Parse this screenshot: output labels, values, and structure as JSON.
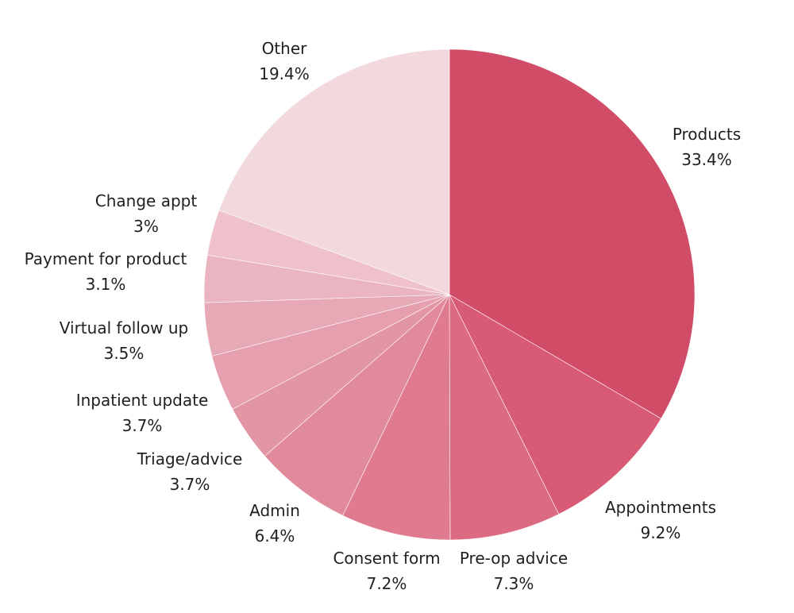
{
  "chart_data": {
    "type": "pie",
    "title": "",
    "start": "12 o'clock, clockwise",
    "slices": [
      {
        "label": "Products",
        "percent_text": "33.4%",
        "value": 33.4,
        "color": "#d04c67"
      },
      {
        "label": "Appointments",
        "percent_text": "9.2%",
        "value": 9.2,
        "color": "#d85a74"
      },
      {
        "label": "Pre-op advice",
        "percent_text": "7.3%",
        "value": 7.3,
        "color": "#dc6b81"
      },
      {
        "label": "Consent form",
        "percent_text": "7.2%",
        "value": 7.2,
        "color": "#e07b8f"
      },
      {
        "label": "Admin",
        "percent_text": "6.4%",
        "value": 6.4,
        "color": "#e08a9c"
      },
      {
        "label": "Triage/advice",
        "percent_text": "3.7%",
        "value": 3.7,
        "color": "#e295a5"
      },
      {
        "label": "Inpatient update",
        "percent_text": "3.7%",
        "value": 3.7,
        "color": "#e59fae"
      },
      {
        "label": "Virtual follow up",
        "percent_text": "3.5%",
        "value": 3.5,
        "color": "#e7a9b6"
      },
      {
        "label": "Payment for product",
        "percent_text": "3.1%",
        "value": 3.1,
        "color": "#eab4c0"
      },
      {
        "label": "Change appt",
        "percent_text": "3%",
        "value": 3.0,
        "color": "#eec1cb"
      },
      {
        "label": "Other",
        "percent_text": "19.4%",
        "value": 19.4,
        "color": "#f2d9de"
      }
    ]
  }
}
